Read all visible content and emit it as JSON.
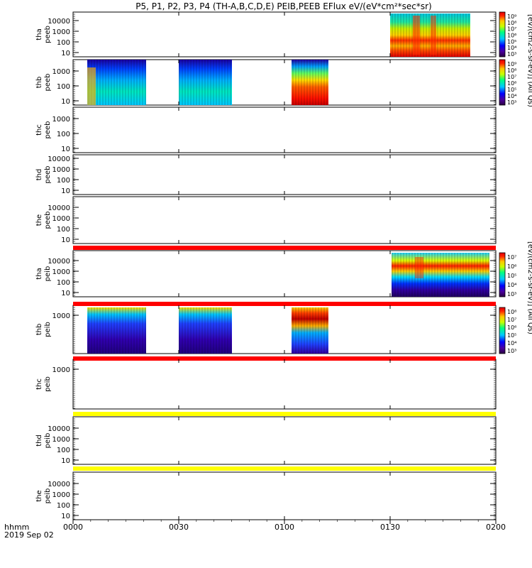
{
  "title": "P5, P1, P2, P3, P4 (TH-A,B,C,D,E) PEIB,PEEB EFlux eV/(eV*cm²*sec*sr)",
  "time_axis": {
    "label_line1": "hhmm",
    "label_line2": "2019 Sep 02",
    "ticks": [
      "0000",
      "0030",
      "0100",
      "0130",
      "0200"
    ],
    "range_minutes": [
      0,
      120
    ]
  },
  "colorbar_label_top": "[eV/(cm2-s-sr-eV)] (All Qs)",
  "colorbar_label_bottom": "[eV/(cm2-s-sr-eV)] (All Qs)",
  "colorbar_ticks": {
    "peeb": [
      "10⁹",
      "10⁸",
      "10⁷",
      "10⁶",
      "10⁵",
      "10⁴",
      "10³"
    ],
    "peib": [
      "10⁷",
      "10⁶",
      "10⁵",
      "10⁴",
      "10³"
    ],
    "peib_thb": [
      "10⁸",
      "10⁷",
      "10⁶",
      "10⁵",
      "10⁴",
      "10³"
    ]
  },
  "panels": [
    {
      "line1": "tha",
      "line2": "peeb",
      "yticks": [
        "10000",
        "1000",
        "100",
        "10"
      ]
    },
    {
      "line1": "thb",
      "line2": "peeb",
      "yticks": [
        "1000",
        "100",
        "10"
      ]
    },
    {
      "line1": "thc",
      "line2": "peeb",
      "yticks": [
        "1000",
        "100",
        "10"
      ]
    },
    {
      "line1": "thd",
      "line2": "peeb",
      "yticks": [
        "10000",
        "1000",
        "100",
        "10"
      ]
    },
    {
      "line1": "the",
      "line2": "peeb",
      "yticks": [
        "10000",
        "1000",
        "100",
        "10"
      ]
    },
    {
      "line1": "tha",
      "line2": "peib",
      "yticks": [
        "10000",
        "1000",
        "100",
        "10"
      ]
    },
    {
      "line1": "thb",
      "line2": "peib",
      "yticks": [
        "1000"
      ]
    },
    {
      "line1": "thc",
      "line2": "peib",
      "yticks": [
        "1000"
      ]
    },
    {
      "line1": "thd",
      "line2": "peib",
      "yticks": [
        "10000",
        "1000",
        "100",
        "10"
      ]
    },
    {
      "line1": "the",
      "line2": "peib",
      "yticks": [
        "10000",
        "1000",
        "100",
        "10"
      ]
    }
  ],
  "chart_data": {
    "type": "heatmap",
    "x_unit": "UT hhmm",
    "y_scale": "log",
    "z_scale": "log",
    "data_intervals_minutes": {
      "tha_peeb": [
        [
          90,
          113
        ]
      ],
      "thb_peeb": [
        [
          5,
          21
        ],
        [
          30,
          45
        ],
        [
          62,
          73
        ]
      ],
      "thc_peeb": [],
      "thd_peeb": [],
      "the_peeb": [],
      "tha_peib": [
        [
          90,
          118
        ]
      ],
      "thb_peib": [
        [
          5,
          21
        ],
        [
          30,
          45
        ],
        [
          62,
          73
        ]
      ],
      "thc_peib": [],
      "thd_peib": [],
      "the_peib": []
    },
    "quality_bars": [
      {
        "position": "between the-peeb and tha-peib",
        "color": "#ff0000"
      },
      {
        "position": "between tha-peib and thb-peib",
        "color": "#ff0000"
      },
      {
        "position": "between thb-peib and thc-peib",
        "color": "#ff0000"
      },
      {
        "position": "between thc-peib and thd-peib",
        "color": "#ffff00"
      },
      {
        "position": "between thd-peib and the-peib",
        "color": "#ffff00"
      }
    ]
  }
}
